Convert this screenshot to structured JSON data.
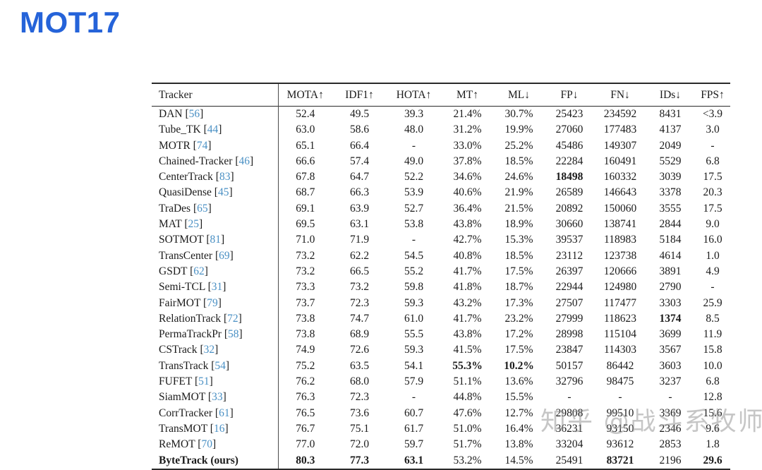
{
  "title": "MOT17",
  "watermark": "知乎 @战斗系牧师",
  "colors": {
    "title_blue": "#2563d9",
    "citation_blue": "#4a90c4",
    "text": "#1b1b1b",
    "rule": "#2a2a2a",
    "watermark_gray": "#8f8f8f"
  },
  "table": {
    "columns": [
      {
        "label": "Tracker",
        "key": "tracker"
      },
      {
        "label": "MOTA↑",
        "key": "mota"
      },
      {
        "label": "IDF1↑",
        "key": "idf1"
      },
      {
        "label": "HOTA↑",
        "key": "hota"
      },
      {
        "label": "MT↑",
        "key": "mt"
      },
      {
        "label": "ML↓",
        "key": "ml"
      },
      {
        "label": "FP↓",
        "key": "fp"
      },
      {
        "label": "FN↓",
        "key": "fn"
      },
      {
        "label": "IDs↓",
        "key": "ids"
      },
      {
        "label": "FPS↑",
        "key": "fps"
      }
    ],
    "rows": [
      {
        "tracker": "DAN",
        "cite": "56",
        "bold_name": false,
        "values": [
          "52.4",
          "49.5",
          "39.3",
          "21.4%",
          "30.7%",
          "25423",
          "234592",
          "8431",
          "<3.9"
        ],
        "bold": []
      },
      {
        "tracker": "Tube_TK",
        "cite": "44",
        "bold_name": false,
        "values": [
          "63.0",
          "58.6",
          "48.0",
          "31.2%",
          "19.9%",
          "27060",
          "177483",
          "4137",
          "3.0"
        ],
        "bold": []
      },
      {
        "tracker": "MOTR",
        "cite": "74",
        "bold_name": false,
        "values": [
          "65.1",
          "66.4",
          "-",
          "33.0%",
          "25.2%",
          "45486",
          "149307",
          "2049",
          "-"
        ],
        "bold": []
      },
      {
        "tracker": "Chained-Tracker",
        "cite": "46",
        "bold_name": false,
        "values": [
          "66.6",
          "57.4",
          "49.0",
          "37.8%",
          "18.5%",
          "22284",
          "160491",
          "5529",
          "6.8"
        ],
        "bold": []
      },
      {
        "tracker": "CenterTrack",
        "cite": "83",
        "bold_name": false,
        "values": [
          "67.8",
          "64.7",
          "52.2",
          "34.6%",
          "24.6%",
          "18498",
          "160332",
          "3039",
          "17.5"
        ],
        "bold": [
          5
        ]
      },
      {
        "tracker": "QuasiDense",
        "cite": "45",
        "bold_name": false,
        "values": [
          "68.7",
          "66.3",
          "53.9",
          "40.6%",
          "21.9%",
          "26589",
          "146643",
          "3378",
          "20.3"
        ],
        "bold": []
      },
      {
        "tracker": "TraDes",
        "cite": "65",
        "bold_name": false,
        "values": [
          "69.1",
          "63.9",
          "52.7",
          "36.4%",
          "21.5%",
          "20892",
          "150060",
          "3555",
          "17.5"
        ],
        "bold": []
      },
      {
        "tracker": "MAT",
        "cite": "25",
        "bold_name": false,
        "values": [
          "69.5",
          "63.1",
          "53.8",
          "43.8%",
          "18.9%",
          "30660",
          "138741",
          "2844",
          "9.0"
        ],
        "bold": []
      },
      {
        "tracker": "SOTMOT",
        "cite": "81",
        "bold_name": false,
        "values": [
          "71.0",
          "71.9",
          "-",
          "42.7%",
          "15.3%",
          "39537",
          "118983",
          "5184",
          "16.0"
        ],
        "bold": []
      },
      {
        "tracker": "TransCenter",
        "cite": "69",
        "bold_name": false,
        "values": [
          "73.2",
          "62.2",
          "54.5",
          "40.8%",
          "18.5%",
          "23112",
          "123738",
          "4614",
          "1.0"
        ],
        "bold": []
      },
      {
        "tracker": "GSDT",
        "cite": "62",
        "bold_name": false,
        "values": [
          "73.2",
          "66.5",
          "55.2",
          "41.7%",
          "17.5%",
          "26397",
          "120666",
          "3891",
          "4.9"
        ],
        "bold": []
      },
      {
        "tracker": "Semi-TCL",
        "cite": "31",
        "bold_name": false,
        "values": [
          "73.3",
          "73.2",
          "59.8",
          "41.8%",
          "18.7%",
          "22944",
          "124980",
          "2790",
          "-"
        ],
        "bold": []
      },
      {
        "tracker": "FairMOT",
        "cite": "79",
        "bold_name": false,
        "values": [
          "73.7",
          "72.3",
          "59.3",
          "43.2%",
          "17.3%",
          "27507",
          "117477",
          "3303",
          "25.9"
        ],
        "bold": []
      },
      {
        "tracker": "RelationTrack",
        "cite": "72",
        "bold_name": false,
        "values": [
          "73.8",
          "74.7",
          "61.0",
          "41.7%",
          "23.2%",
          "27999",
          "118623",
          "1374",
          "8.5"
        ],
        "bold": [
          7
        ]
      },
      {
        "tracker": "PermaTrackPr",
        "cite": "58",
        "bold_name": false,
        "values": [
          "73.8",
          "68.9",
          "55.5",
          "43.8%",
          "17.2%",
          "28998",
          "115104",
          "3699",
          "11.9"
        ],
        "bold": []
      },
      {
        "tracker": "CSTrack",
        "cite": "32",
        "bold_name": false,
        "values": [
          "74.9",
          "72.6",
          "59.3",
          "41.5%",
          "17.5%",
          "23847",
          "114303",
          "3567",
          "15.8"
        ],
        "bold": []
      },
      {
        "tracker": "TransTrack",
        "cite": "54",
        "bold_name": false,
        "values": [
          "75.2",
          "63.5",
          "54.1",
          "55.3%",
          "10.2%",
          "50157",
          "86442",
          "3603",
          "10.0"
        ],
        "bold": [
          3,
          4
        ]
      },
      {
        "tracker": "FUFET",
        "cite": "51",
        "bold_name": false,
        "values": [
          "76.2",
          "68.0",
          "57.9",
          "51.1%",
          "13.6%",
          "32796",
          "98475",
          "3237",
          "6.8"
        ],
        "bold": []
      },
      {
        "tracker": "SiamMOT",
        "cite": "33",
        "bold_name": false,
        "values": [
          "76.3",
          "72.3",
          "-",
          "44.8%",
          "15.5%",
          "-",
          "-",
          "-",
          "12.8"
        ],
        "bold": []
      },
      {
        "tracker": "CorrTracker",
        "cite": "61",
        "bold_name": false,
        "values": [
          "76.5",
          "73.6",
          "60.7",
          "47.6%",
          "12.7%",
          "29808",
          "99510",
          "3369",
          "15.6"
        ],
        "bold": []
      },
      {
        "tracker": "TransMOT",
        "cite": "16",
        "bold_name": false,
        "values": [
          "76.7",
          "75.1",
          "61.7",
          "51.0%",
          "16.4%",
          "36231",
          "93150",
          "2346",
          "9.6"
        ],
        "bold": []
      },
      {
        "tracker": "ReMOT",
        "cite": "70",
        "bold_name": false,
        "values": [
          "77.0",
          "72.0",
          "59.7",
          "51.7%",
          "13.8%",
          "33204",
          "93612",
          "2853",
          "1.8"
        ],
        "bold": []
      },
      {
        "tracker": "ByteTrack (ours)",
        "cite": "",
        "bold_name": true,
        "values": [
          "80.3",
          "77.3",
          "63.1",
          "53.2%",
          "14.5%",
          "25491",
          "83721",
          "2196",
          "29.6"
        ],
        "bold": [
          0,
          1,
          2,
          6,
          8
        ]
      }
    ]
  }
}
